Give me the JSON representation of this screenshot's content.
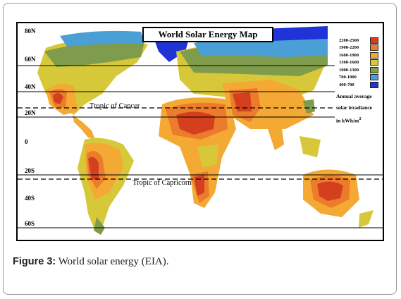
{
  "map": {
    "title": "World Solar Energy  Map",
    "latitudes": [
      "80N",
      "60N",
      "40N",
      "20N",
      "0",
      "20S",
      "40S",
      "60S"
    ],
    "tropic_cancer": "Tropic of Cancer",
    "tropic_capricorn": "Tropic of Capricorn",
    "legend": [
      {
        "label": "2200-2500",
        "color": "#d4401e"
      },
      {
        "label": "1900-2200",
        "color": "#ec7b2b"
      },
      {
        "label": "1600-1900",
        "color": "#f4a934"
      },
      {
        "label": "1300-1600",
        "color": "#d7c83a"
      },
      {
        "label": "1000-1300",
        "color": "#7f9c4c"
      },
      {
        "label": "700-1000",
        "color": "#4a9fd6"
      },
      {
        "label": "400-700",
        "color": "#1f33d6"
      }
    ],
    "irradiance_label": [
      "Annual average",
      "solar irradiance",
      "in kWh/m"
    ],
    "irradiance_sup": "2"
  },
  "caption": {
    "label": "Figure 3:",
    "text": " World solar energy (EIA)."
  }
}
